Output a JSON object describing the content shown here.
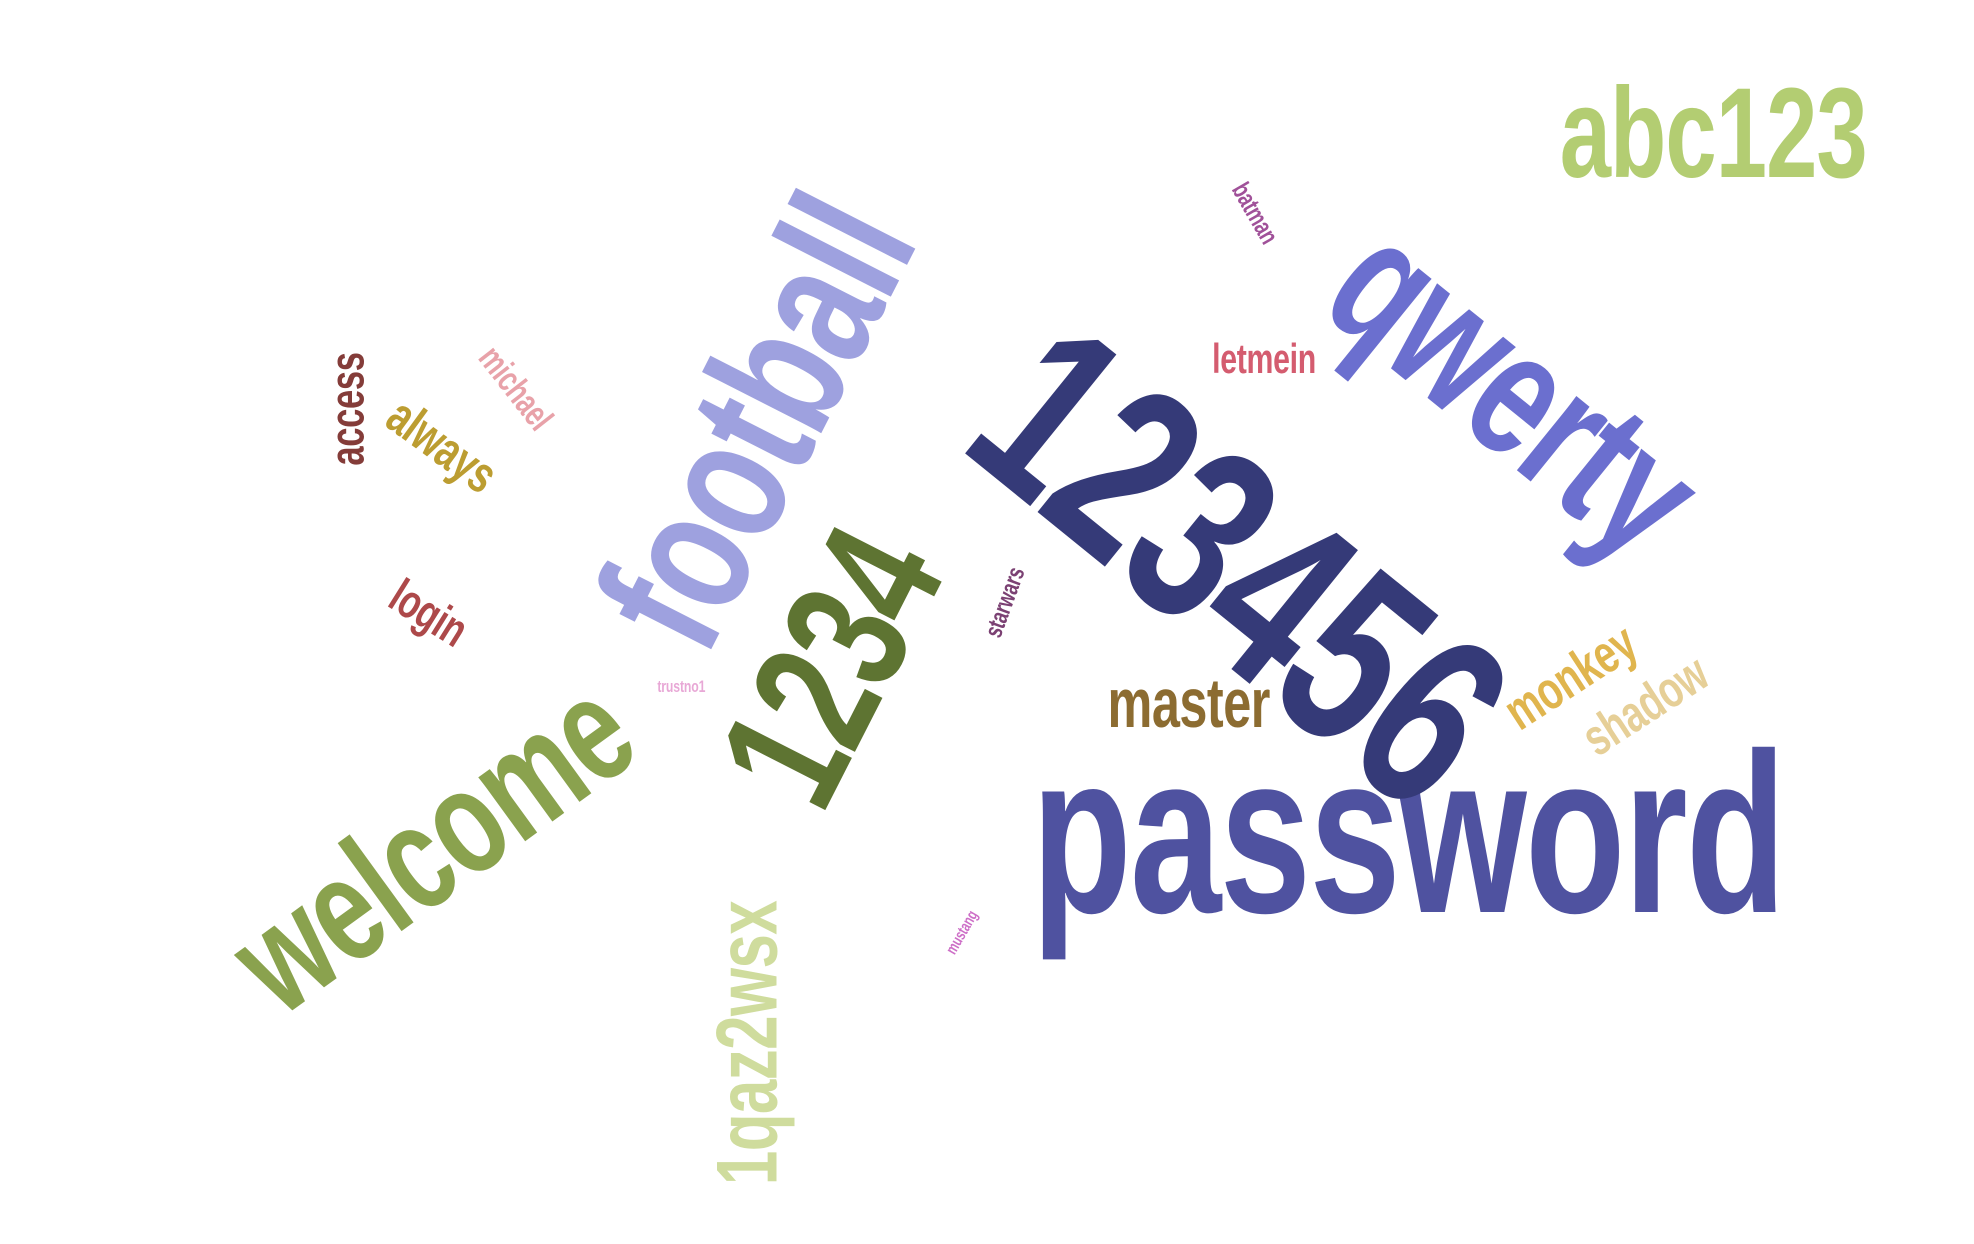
{
  "word_cloud": {
    "words": [
      {
        "text": "password",
        "color": "#4f52a0"
      },
      {
        "text": "123456",
        "color": "#353a78"
      },
      {
        "text": "qwerty",
        "color": "#6b6fcf"
      },
      {
        "text": "football",
        "color": "#9ea1df"
      },
      {
        "text": "welcome",
        "color": "#8aa24e"
      },
      {
        "text": "1234",
        "color": "#5e7432"
      },
      {
        "text": "abc123",
        "color": "#b3cd72"
      },
      {
        "text": "1qaz2wsx",
        "color": "#cfdc9d"
      },
      {
        "text": "master",
        "color": "#8c6c31"
      },
      {
        "text": "monkey",
        "color": "#e0b54e"
      },
      {
        "text": "shadow",
        "color": "#e6cf97"
      },
      {
        "text": "letmein",
        "color": "#d45c6f"
      },
      {
        "text": "access",
        "color": "#843c39"
      },
      {
        "text": "always",
        "color": "#bc9d31"
      },
      {
        "text": "michael",
        "color": "#e8a2a9"
      },
      {
        "text": "login",
        "color": "#ad494a"
      },
      {
        "text": "batman",
        "color": "#a05199"
      },
      {
        "text": "starwars",
        "color": "#7b4173"
      },
      {
        "text": "trustno1",
        "color": "#e8a8d6"
      },
      {
        "text": "mustang",
        "color": "#cd6fc7"
      }
    ]
  }
}
